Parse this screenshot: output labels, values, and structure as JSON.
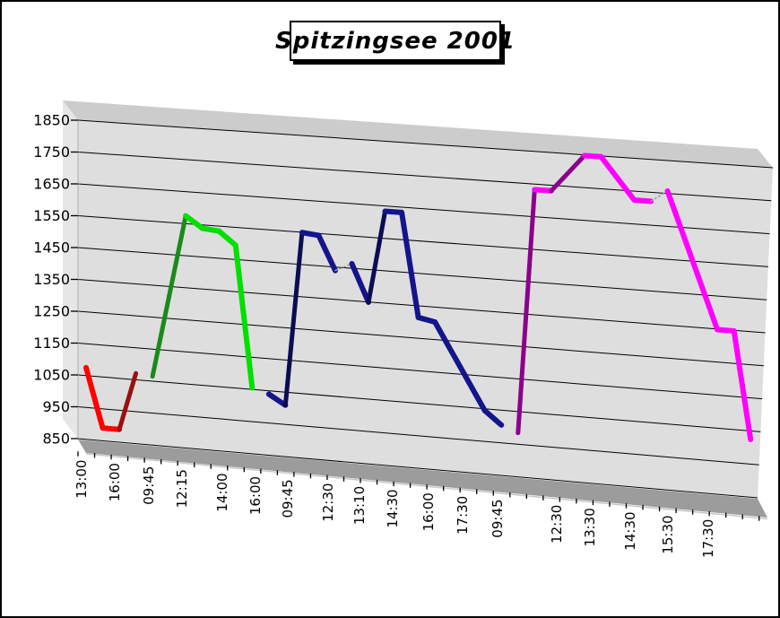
{
  "title": {
    "text": "Spitzingsee 2001"
  },
  "chart_data": {
    "type": "line",
    "title": "Spitzingsee 2001",
    "projection": "3d-perspective",
    "grid": true,
    "legend": "none",
    "xlabel": "",
    "ylabel": "",
    "y_axis": {
      "min": 850,
      "max": 1850,
      "major_unit": 100,
      "tick_labels": [
        "1850",
        "1750",
        "1650",
        "1550",
        "1450",
        "1350",
        "1250",
        "1150",
        "1050",
        "950",
        "850"
      ]
    },
    "x_axis": {
      "tick_labels": [
        "13:00",
        "16:00",
        "09:45",
        "12:15",
        "14:00",
        "16:00",
        "09:45",
        "12:30",
        "13:10",
        "14:30",
        "16:00",
        "17:30",
        "09:45",
        "12:30",
        "13:30",
        "14:30",
        "15:30",
        "17:30"
      ],
      "categories_total": 41
    },
    "series": [
      {
        "id": "series-1-red",
        "color": "#FF0000",
        "shade": "#9B1010",
        "points": [
          [
            0,
            1075
          ],
          [
            1,
            890
          ],
          [
            2,
            890
          ],
          [
            3,
            1070
          ]
        ]
      },
      {
        "id": "series-2-green",
        "color": "#00E000",
        "shade": "#1A8A1A",
        "points": [
          [
            4,
            1065
          ],
          [
            5,
            1320
          ],
          [
            6,
            1575
          ],
          [
            7,
            1540
          ],
          [
            8,
            1535
          ],
          [
            9,
            1495
          ],
          [
            10,
            1055
          ]
        ]
      },
      {
        "id": "series-3-navy",
        "color": "#14148C",
        "shade": "#0C0C52",
        "points": [
          [
            11,
            1040
          ],
          [
            12,
            1010
          ],
          [
            13,
            1550
          ],
          [
            14,
            1545
          ],
          [
            15,
            1440
          ],
          [
            16,
            1465
          ],
          [
            17,
            1350
          ],
          [
            18,
            1635
          ],
          [
            19,
            1635
          ],
          [
            20,
            1315
          ],
          [
            21,
            1305
          ],
          [
            24,
            1045
          ],
          [
            25,
            1005
          ]
        ]
      },
      {
        "id": "series-4-magenta",
        "color": "#FF00FF",
        "shade": "#8B008B",
        "points": [
          [
            26,
            985
          ],
          [
            27,
            1735
          ],
          [
            28,
            1735
          ],
          [
            30,
            1850
          ],
          [
            31,
            1850
          ],
          [
            33,
            1725
          ],
          [
            34,
            1725
          ],
          [
            35,
            1760
          ],
          [
            38,
            1350
          ],
          [
            39,
            1350
          ],
          [
            40,
            1025
          ]
        ]
      }
    ],
    "colors": {
      "wall": "#DEDEDE",
      "wall_side": "#E6E6E6",
      "wall_top": "#CCCCCC",
      "floor": "#9C9C9C",
      "floor_edge": "#C8C8C8",
      "gridline": "#000000",
      "edge_on_segment": "#9999AA"
    }
  }
}
